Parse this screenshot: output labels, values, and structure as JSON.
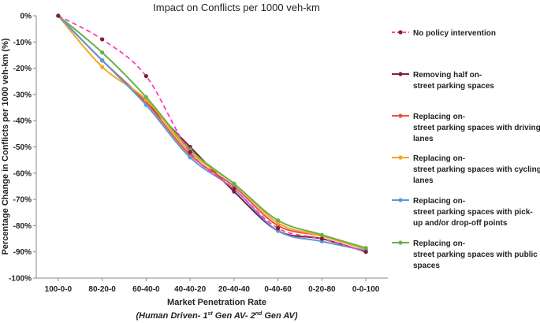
{
  "chart_data": {
    "type": "line",
    "title": "Impact on Conflicts per 1000 veh-km",
    "xlabel": "Market Penetration Rate",
    "xlabel_sub_parts": [
      "(Human Driven- 1",
      "st",
      " Gen AV- 2",
      "nd",
      " Gen AV)"
    ],
    "ylabel": "Percentage Change in Conflicts per 1000 veh-km (%)",
    "categories": [
      "100-0-0",
      "80-20-0",
      "60-40-0",
      "40-40-20",
      "20-40-40",
      "0-40-60",
      "0-20-80",
      "0-0-100"
    ],
    "y_ticks": [
      "0%",
      "-10%",
      "-20%",
      "-30%",
      "-40%",
      "-50%",
      "-60%",
      "-70%",
      "-80%",
      "-90%",
      "-100%"
    ],
    "ylim": [
      -100,
      0
    ],
    "grid": false,
    "legend_position": "right",
    "series": [
      {
        "name": "No policy intervention",
        "label_lines": [
          "No policy intervention"
        ],
        "color": "#ff3dbb",
        "dashed": true,
        "values": [
          0,
          -9,
          -23,
          -52,
          -66,
          -81,
          -85,
          -90
        ]
      },
      {
        "name": "Removing half on-street parking spaces",
        "label_lines": [
          "Removing half on-",
          "street parking spaces"
        ],
        "color": "#7b1f3c",
        "dashed": false,
        "values": [
          0,
          -17,
          -33,
          -50,
          -67,
          -82,
          -85,
          -90
        ]
      },
      {
        "name": "Replacing on-street parking spaces with driving lanes",
        "label_lines": [
          "Replacing on-",
          "street parking spaces with driving",
          "lanes"
        ],
        "color": "#e8553f",
        "dashed": false,
        "values": [
          0,
          -17,
          -33,
          -53,
          -65,
          -80,
          -84,
          -89
        ]
      },
      {
        "name": "Replacing on-street parking spaces with cycling lanes",
        "label_lines": [
          "Replacing on-",
          "street parking spaces with cycling",
          "lanes"
        ],
        "color": "#f5a623",
        "dashed": false,
        "values": [
          0,
          -19.5,
          -32,
          -52,
          -64,
          -79,
          -84,
          -89
        ]
      },
      {
        "name": "Replacing on-street parking spaces with pick-up and/or drop-off points",
        "label_lines": [
          "Replacing on-",
          "street parking spaces with pick-",
          "up and/or drop-off points"
        ],
        "color": "#5b9bd5",
        "dashed": false,
        "values": [
          0,
          -17,
          -34,
          -54,
          -66,
          -82,
          -86,
          -89.5
        ]
      },
      {
        "name": "Replacing on-street parking spaces with public spaces",
        "label_lines": [
          "Replacing on-",
          "street parking spaces with public",
          "spaces"
        ],
        "color": "#6ab04c",
        "dashed": false,
        "values": [
          0,
          -14,
          -31,
          -51,
          -64,
          -78,
          -83.5,
          -88.5
        ]
      }
    ]
  }
}
